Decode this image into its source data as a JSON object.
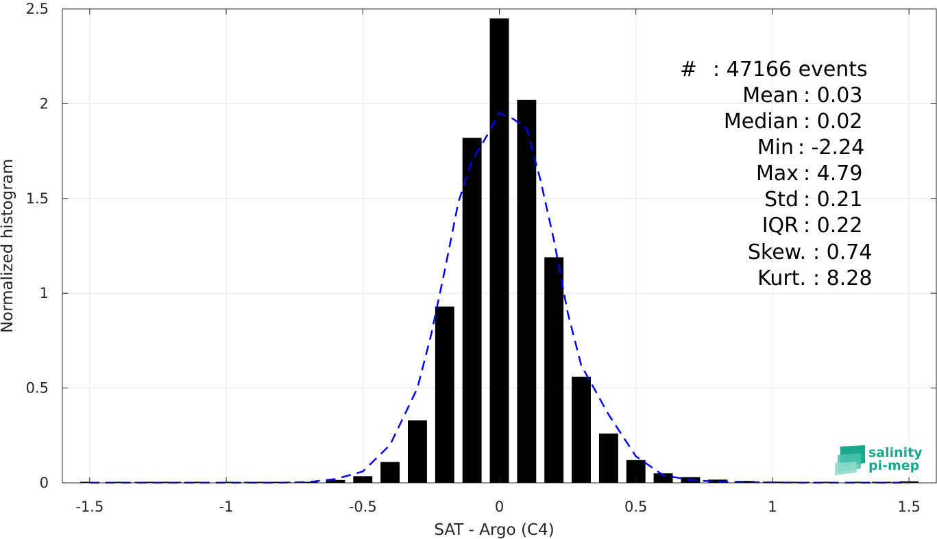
{
  "chart_data": {
    "type": "bar",
    "xlabel": "SAT - Argo (C4)",
    "ylabel": "Normalized histogram",
    "xlim": [
      -1.6,
      1.6
    ],
    "ylim": [
      0,
      2.5
    ],
    "x_ticks": [
      -1.5,
      -1,
      -0.5,
      0,
      0.5,
      1,
      1.5
    ],
    "x_tick_labels": [
      "-1.5",
      "-1",
      "-0.5",
      "0",
      "0.5",
      "1",
      "1.5"
    ],
    "y_ticks": [
      0,
      0.5,
      1,
      1.5,
      2,
      2.5
    ],
    "y_tick_labels": [
      "0",
      "0.5",
      "1",
      "1.5",
      "2",
      "2.5"
    ],
    "grid": true,
    "bar_color": "#000000",
    "fit_color": "#0000ee",
    "bar_width": 0.07,
    "series": [
      {
        "style": "bars",
        "x": [
          -1.5,
          -1.4,
          -1.3,
          -1.2,
          -1.1,
          -1.0,
          -0.9,
          -0.8,
          -0.7,
          -0.6,
          -0.5,
          -0.4,
          -0.3,
          -0.2,
          -0.1,
          0.0,
          0.1,
          0.2,
          0.3,
          0.4,
          0.5,
          0.6,
          0.7,
          0.8,
          0.9,
          1.0,
          1.1,
          1.2,
          1.3,
          1.4,
          1.5
        ],
        "values": [
          0.001,
          0.001,
          0.001,
          0.001,
          0.001,
          0.001,
          0.001,
          0.001,
          0.003,
          0.015,
          0.035,
          0.11,
          0.33,
          0.93,
          1.82,
          2.45,
          2.02,
          1.19,
          0.56,
          0.26,
          0.12,
          0.05,
          0.03,
          0.017,
          0.01,
          0.006,
          0.004,
          0.002,
          0.002,
          0.002,
          0.008
        ]
      },
      {
        "style": "dashed-line",
        "x": [
          -1.5,
          -1.4,
          -1.3,
          -1.2,
          -1.1,
          -1.0,
          -0.9,
          -0.8,
          -0.7,
          -0.6,
          -0.5,
          -0.4,
          -0.3,
          -0.25,
          -0.2,
          -0.15,
          -0.1,
          -0.05,
          0.0,
          0.05,
          0.1,
          0.15,
          0.2,
          0.25,
          0.3,
          0.4,
          0.5,
          0.6,
          0.7,
          0.8,
          0.9,
          1.0,
          1.1,
          1.2,
          1.3,
          1.4,
          1.5
        ],
        "values": [
          0.001,
          0.001,
          0.001,
          0.001,
          0.001,
          0.001,
          0.001,
          0.001,
          0.004,
          0.02,
          0.06,
          0.2,
          0.5,
          0.78,
          1.12,
          1.48,
          1.7,
          1.82,
          1.95,
          1.92,
          1.87,
          1.6,
          1.28,
          0.9,
          0.62,
          0.36,
          0.14,
          0.04,
          0.015,
          0.006,
          0.003,
          0.002,
          0.001,
          0.001,
          0.001,
          0.001,
          0.001
        ]
      }
    ]
  },
  "stats": [
    {
      "label": "#",
      "sep": ": 47166 events"
    },
    {
      "label": "Mean",
      "sep": ": 0.03"
    },
    {
      "label": "Median",
      "sep": ": 0.02"
    },
    {
      "label": "Min",
      "sep": ": -2.24"
    },
    {
      "label": "Max",
      "sep": ": 4.79"
    },
    {
      "label": "Std",
      "sep": ": 0.21"
    },
    {
      "label": "IQR",
      "sep": ": 0.22"
    },
    {
      "label": "Skew.",
      "sep": ": 0.74"
    },
    {
      "label": "Kurt.",
      "sep": ": 8.28"
    }
  ],
  "logo": {
    "line1": "salinity",
    "line2": "pi-mep",
    "icon": "wave-layers-icon",
    "color": "#1aa88f"
  }
}
